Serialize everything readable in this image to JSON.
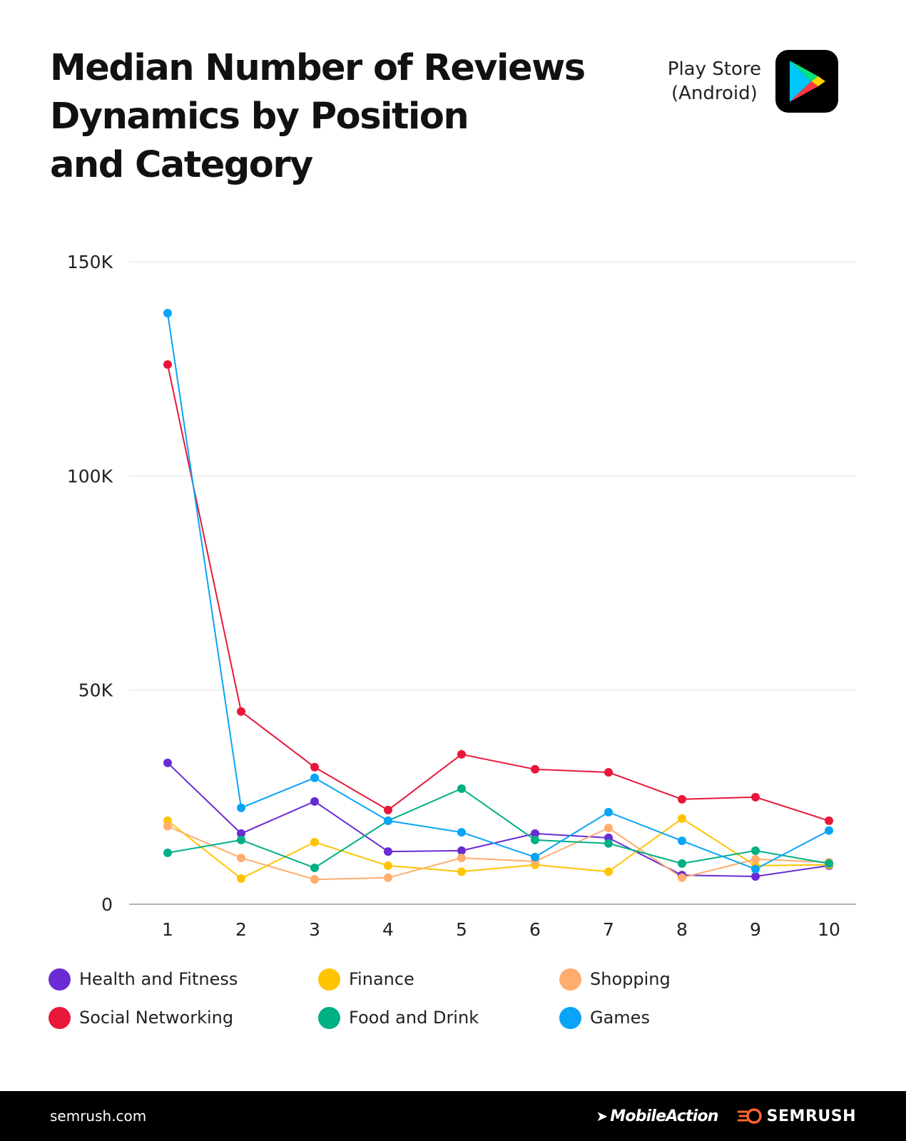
{
  "title_lines": [
    "Median Number of Reviews",
    "Dynamics by Position",
    "and Category"
  ],
  "store": {
    "lines": [
      "Play Store",
      "(Android)"
    ],
    "icon": "google-play-icon"
  },
  "chart_data": {
    "type": "line",
    "title": "Median Number of Reviews Dynamics by Position and Category",
    "categories": [
      "1",
      "2",
      "3",
      "4",
      "5",
      "6",
      "7",
      "8",
      "9",
      "10"
    ],
    "ylim": [
      0,
      150000
    ],
    "y_ticks": [
      0,
      50000,
      100000,
      150000
    ],
    "y_tick_labels": [
      "0",
      "50K",
      "100K",
      "150K"
    ],
    "grid": true,
    "legend_position": "bottom",
    "series": [
      {
        "name": "Health and Fitness",
        "color": "#6a2bd4",
        "values": [
          33000,
          16500,
          24000,
          12300,
          12500,
          16500,
          15500,
          6800,
          6500,
          9000
        ]
      },
      {
        "name": "Finance",
        "color": "#ffc400",
        "values": [
          19500,
          6000,
          14500,
          9000,
          7600,
          9200,
          7600,
          20000,
          9000,
          9200
        ]
      },
      {
        "name": "Shopping",
        "color": "#ffad6e",
        "values": [
          18200,
          10800,
          5800,
          6200,
          10800,
          10000,
          17800,
          6200,
          10500,
          9800
        ]
      },
      {
        "name": "Social Networking",
        "color": "#e8173a",
        "values": [
          126000,
          45000,
          32000,
          22000,
          35000,
          31500,
          30800,
          24500,
          25000,
          19500
        ]
      },
      {
        "name": "Food and Drink",
        "color": "#00b085",
        "values": [
          12000,
          15000,
          8500,
          19500,
          27000,
          15000,
          14200,
          9500,
          12500,
          9500
        ]
      },
      {
        "name": "Games",
        "color": "#0aa4f6",
        "values": [
          138000,
          22500,
          29500,
          19500,
          16800,
          11000,
          21500,
          14800,
          8200,
          17200
        ]
      }
    ]
  },
  "footer": {
    "url": "semrush.com",
    "brand_left": "MobileAction",
    "brand_right": "SEMRUSH"
  }
}
